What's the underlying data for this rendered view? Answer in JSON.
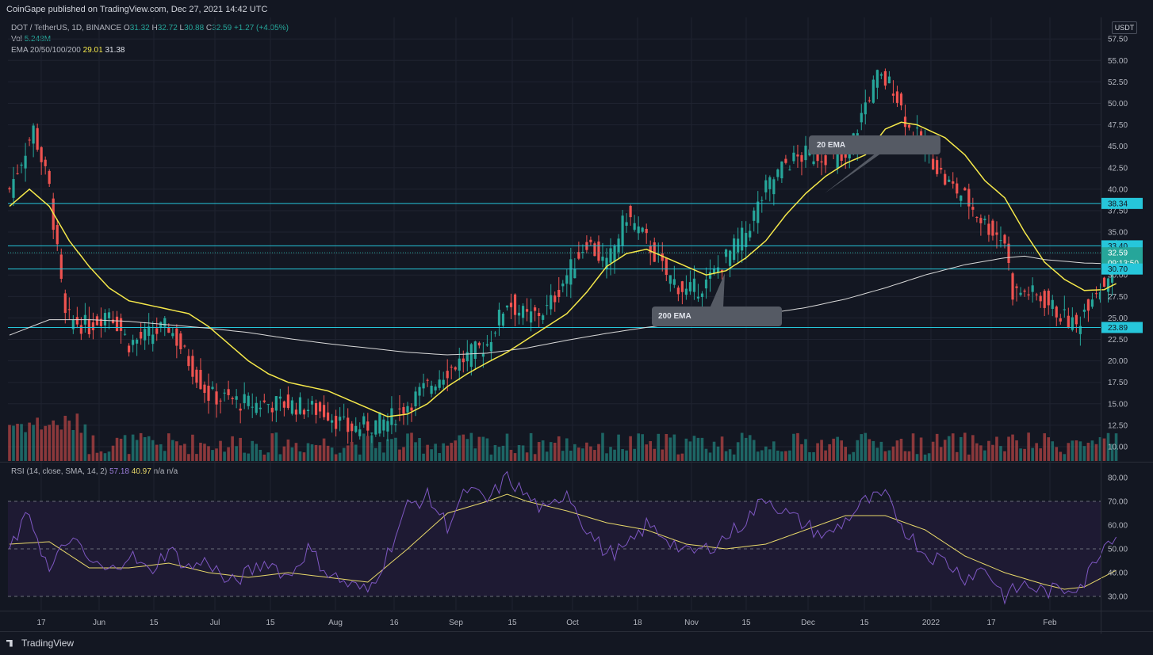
{
  "header": {
    "published": "CoinGape published on TradingView.com, Dec 27, 2021 14:42 UTC"
  },
  "legend": {
    "symbol": "DOT / TetherUS, 1D, BINANCE",
    "o_label": "O",
    "o": "31.32",
    "h_label": "H",
    "h": "32.72",
    "l_label": "L",
    "l": "30.88",
    "c_label": "C",
    "c": "32.59",
    "chg": "+1.27 (+4.05%)",
    "vol_label": "Vol",
    "vol": "5.248M",
    "ema_label": "EMA 20/50/100/200",
    "ema20": "29.01",
    "ema200": "31.38"
  },
  "rsi_legend": {
    "label": "RSI (14, close, SMA, 14, 2)",
    "rsi": "57.18",
    "sma": "40.97",
    "na1": "n/a",
    "na2": "n/a"
  },
  "currency": "USDT",
  "footer": {
    "brand": "TradingView"
  },
  "colors": {
    "background": "#131722",
    "up": "#26a69a",
    "down": "#ef5350",
    "ema20": "#f5e84a",
    "ema200": "#e0e0e0",
    "level": "#26c6da",
    "rsi": "#7e57c2",
    "rsi_band": "#1e1a33"
  },
  "chart_data": [
    {
      "type": "candlestick",
      "title": "DOT / TetherUS, 1D, BINANCE",
      "x_ticks": [
        "17",
        "Jun",
        "15",
        "Jul",
        "15",
        "Aug",
        "16",
        "Sep",
        "15",
        "Oct",
        "18",
        "Nov",
        "15",
        "Dec",
        "15",
        "2022",
        "17",
        "Feb"
      ],
      "y_ticks": [
        "57.50",
        "55.00",
        "52.50",
        "50.00",
        "47.50",
        "45.00",
        "42.50",
        "40.00",
        "37.50",
        "35.00",
        "32.50",
        "30.00",
        "27.50",
        "25.00",
        "22.50",
        "20.00",
        "17.50",
        "15.00",
        "12.50",
        "10.00"
      ],
      "ylim": [
        9,
        58
      ],
      "horizontal_levels": [
        38.34,
        33.4,
        30.7,
        23.89
      ],
      "price_labels": {
        "l1": "38.34",
        "l2": "33.40",
        "last": "32.59",
        "countdown": "09:13:50",
        "l3": "30.70",
        "l4": "23.89"
      },
      "annotations": [
        {
          "text": "20 EMA"
        },
        {
          "text": "200 EMA"
        }
      ],
      "series": [
        {
          "name": "EMA 20",
          "anchors": [
            [
              0,
              38
            ],
            [
              5,
              40
            ],
            [
              10,
              38
            ],
            [
              15,
              34
            ],
            [
              20,
              31
            ],
            [
              25,
              28.5
            ],
            [
              30,
              27
            ],
            [
              35,
              26.5
            ],
            [
              40,
              26
            ],
            [
              45,
              25.5
            ],
            [
              50,
              24
            ],
            [
              55,
              22
            ],
            [
              60,
              20
            ],
            [
              65,
              18.5
            ],
            [
              70,
              17.5
            ],
            [
              75,
              17
            ],
            [
              80,
              16.5
            ],
            [
              85,
              15.5
            ],
            [
              90,
              14.5
            ],
            [
              95,
              13.5
            ],
            [
              100,
              13.8
            ],
            [
              105,
              15
            ],
            [
              110,
              17
            ],
            [
              115,
              18.5
            ],
            [
              120,
              19.8
            ],
            [
              125,
              21
            ],
            [
              130,
              22.5
            ],
            [
              135,
              24
            ],
            [
              140,
              25.5
            ],
            [
              145,
              28
            ],
            [
              150,
              31
            ],
            [
              155,
              32.5
            ],
            [
              160,
              33
            ],
            [
              165,
              32
            ],
            [
              170,
              31
            ],
            [
              175,
              30
            ],
            [
              180,
              30.5
            ],
            [
              185,
              32
            ],
            [
              190,
              34
            ],
            [
              195,
              37
            ],
            [
              200,
              39.5
            ],
            [
              205,
              41.5
            ],
            [
              210,
              43
            ],
            [
              215,
              44
            ],
            [
              220,
              47
            ],
            [
              224,
              47.8
            ],
            [
              228,
              47.5
            ],
            [
              235,
              46
            ],
            [
              240,
              44
            ],
            [
              245,
              41
            ],
            [
              250,
              39
            ],
            [
              255,
              35
            ],
            [
              260,
              31.5
            ],
            [
              265,
              29.5
            ],
            [
              270,
              28.2
            ],
            [
              275,
              28.3
            ],
            [
              278,
              29
            ]
          ]
        },
        {
          "name": "EMA 200",
          "anchors": [
            [
              0,
              23
            ],
            [
              10,
              24.8
            ],
            [
              20,
              24.8
            ],
            [
              30,
              24.6
            ],
            [
              40,
              24.2
            ],
            [
              50,
              23.8
            ],
            [
              60,
              23.3
            ],
            [
              70,
              22.6
            ],
            [
              80,
              22
            ],
            [
              90,
              21.5
            ],
            [
              100,
              21
            ],
            [
              110,
              20.7
            ],
            [
              120,
              20.9
            ],
            [
              130,
              21.5
            ],
            [
              140,
              22.4
            ],
            [
              150,
              23.2
            ],
            [
              160,
              23.9
            ],
            [
              170,
              24.5
            ],
            [
              180,
              25
            ],
            [
              190,
              25.5
            ],
            [
              200,
              26.2
            ],
            [
              210,
              27.2
            ],
            [
              220,
              28.5
            ],
            [
              230,
              30
            ],
            [
              240,
              31.2
            ],
            [
              250,
              32
            ],
            [
              255,
              32.2
            ],
            [
              260,
              31.8
            ],
            [
              270,
              31.4
            ],
            [
              278,
              31.3
            ]
          ]
        },
        {
          "name": "RSI",
          "anchors": [
            [
              0,
              50
            ],
            [
              5,
              65
            ],
            [
              10,
              40
            ],
            [
              15,
              55
            ],
            [
              20,
              45
            ],
            [
              25,
              40
            ],
            [
              30,
              48
            ],
            [
              35,
              40
            ],
            [
              40,
              50
            ],
            [
              45,
              42
            ],
            [
              50,
              45
            ],
            [
              55,
              35
            ],
            [
              60,
              40
            ],
            [
              65,
              45
            ],
            [
              70,
              38
            ],
            [
              75,
              50
            ],
            [
              80,
              40
            ],
            [
              85,
              35
            ],
            [
              90,
              32
            ],
            [
              95,
              48
            ],
            [
              100,
              68
            ],
            [
              105,
              72
            ],
            [
              110,
              60
            ],
            [
              115,
              75
            ],
            [
              120,
              70
            ],
            [
              125,
              80
            ],
            [
              130,
              72
            ],
            [
              135,
              65
            ],
            [
              140,
              75
            ],
            [
              145,
              58
            ],
            [
              150,
              48
            ],
            [
              155,
              50
            ],
            [
              160,
              60
            ],
            [
              165,
              55
            ],
            [
              170,
              48
            ],
            [
              175,
              50
            ],
            [
              180,
              55
            ],
            [
              185,
              62
            ],
            [
              190,
              72
            ],
            [
              195,
              65
            ],
            [
              200,
              60
            ],
            [
              205,
              55
            ],
            [
              210,
              62
            ],
            [
              215,
              70
            ],
            [
              220,
              72
            ],
            [
              225,
              58
            ],
            [
              230,
              48
            ],
            [
              235,
              45
            ],
            [
              240,
              38
            ],
            [
              245,
              42
            ],
            [
              250,
              30
            ],
            [
              255,
              35
            ],
            [
              260,
              32
            ],
            [
              265,
              33
            ],
            [
              270,
              36
            ],
            [
              274,
              50
            ],
            [
              278,
              57.18
            ]
          ]
        },
        {
          "name": "RSI SMA",
          "anchors": [
            [
              0,
              52
            ],
            [
              10,
              53
            ],
            [
              20,
              42
            ],
            [
              30,
              42
            ],
            [
              40,
              44
            ],
            [
              50,
              40
            ],
            [
              60,
              38
            ],
            [
              70,
              40
            ],
            [
              80,
              38
            ],
            [
              90,
              36
            ],
            [
              100,
              50
            ],
            [
              110,
              65
            ],
            [
              120,
              70
            ],
            [
              125,
              73
            ],
            [
              130,
              70
            ],
            [
              140,
              66
            ],
            [
              150,
              61
            ],
            [
              160,
              58
            ],
            [
              170,
              52
            ],
            [
              180,
              50
            ],
            [
              190,
              52
            ],
            [
              200,
              58
            ],
            [
              210,
              64
            ],
            [
              215,
              64
            ],
            [
              220,
              64
            ],
            [
              230,
              58
            ],
            [
              240,
              47
            ],
            [
              250,
              40
            ],
            [
              260,
              35
            ],
            [
              265,
              33
            ],
            [
              270,
              34
            ],
            [
              278,
              40.97
            ]
          ]
        }
      ]
    },
    {
      "type": "line",
      "title": "RSI (14, close, SMA, 14, 2)",
      "y_ticks": [
        "80.00",
        "70.00",
        "60.00",
        "50.00",
        "40.00",
        "30.00"
      ],
      "ylim": [
        26,
        84
      ],
      "bands": [
        30,
        50,
        70
      ]
    }
  ]
}
